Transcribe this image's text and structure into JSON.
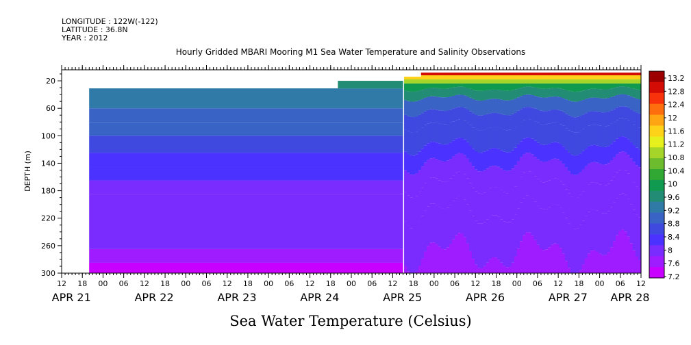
{
  "header": {
    "longitude": "LONGITUDE : 122W(-122)",
    "latitude": "LATITUDE : 36.8N",
    "year": "YEAR : 2012"
  },
  "chart_data": {
    "type": "heatmap",
    "title": "Hourly Gridded MBARI Mooring M1 Sea Water Temperature and Salinity Observations",
    "xlabel": "",
    "ylabel": "DEPTH (m)",
    "bottom_title": "Sea Water Temperature (Celsius)",
    "y_reversed": true,
    "ylim": [
      300,
      4
    ],
    "y_ticks": [
      20,
      60,
      100,
      140,
      180,
      220,
      260,
      300
    ],
    "x_hour_ticks": [
      "12",
      "18",
      "00",
      "06",
      "12",
      "18",
      "00",
      "06",
      "12",
      "18",
      "00",
      "06",
      "12",
      "18",
      "00",
      "06",
      "12",
      "18",
      "00",
      "06",
      "12",
      "18",
      "00",
      "06",
      "12",
      "18",
      "00",
      "06",
      "12"
    ],
    "x_date_labels": [
      {
        "label": "APR 21",
        "hour_index": 1
      },
      {
        "label": "APR 22",
        "hour_index": 5
      },
      {
        "label": "APR 23",
        "hour_index": 9
      },
      {
        "label": "APR 24",
        "hour_index": 13
      },
      {
        "label": "APR 25",
        "hour_index": 17
      },
      {
        "label": "APR 26",
        "hour_index": 21
      },
      {
        "label": "APR 27",
        "hour_index": 25
      },
      {
        "label": "APR 28",
        "hour_index": 28
      }
    ],
    "colorbar": {
      "labels": [
        "13.2",
        "12.8",
        "12.4",
        "12",
        "11.6",
        "11.2",
        "10.8",
        "10.4",
        "10",
        "9.6",
        "9.2",
        "8.8",
        "8.4",
        "8",
        "7.6",
        "7.2"
      ],
      "min": 7.2,
      "max": 13.2
    },
    "profile_early": [
      {
        "depth_max": 60,
        "temp": 9.3
      },
      {
        "depth_max": 80,
        "temp": 9.1
      },
      {
        "depth_max": 100,
        "temp": 8.9
      },
      {
        "depth_max": 125,
        "temp": 8.7
      },
      {
        "depth_max": 145,
        "temp": 8.5
      },
      {
        "depth_max": 165,
        "temp": 8.3
      },
      {
        "depth_max": 185,
        "temp": 8.2
      },
      {
        "depth_max": 265,
        "temp": 8.0
      },
      {
        "depth_max": 285,
        "temp": 7.7
      },
      {
        "depth_max": 300,
        "temp": 7.4
      }
    ],
    "profile_late": [
      {
        "depth_max": 12,
        "temp": 12.9
      },
      {
        "depth_max": 18,
        "temp": 11.8
      },
      {
        "depth_max": 24,
        "temp": 10.9
      },
      {
        "depth_max": 32,
        "temp": 10.2
      },
      {
        "depth_max": 45,
        "temp": 9.7
      },
      {
        "depth_max": 65,
        "temp": 9.1
      },
      {
        "depth_max": 85,
        "temp": 8.8
      },
      {
        "depth_max": 115,
        "temp": 8.6
      },
      {
        "depth_max": 140,
        "temp": 8.4
      },
      {
        "depth_max": 170,
        "temp": 8.2
      },
      {
        "depth_max": 210,
        "temp": 8.05
      },
      {
        "depth_max": 270,
        "temp": 7.95
      },
      {
        "depth_max": 300,
        "temp": 7.7
      }
    ]
  }
}
